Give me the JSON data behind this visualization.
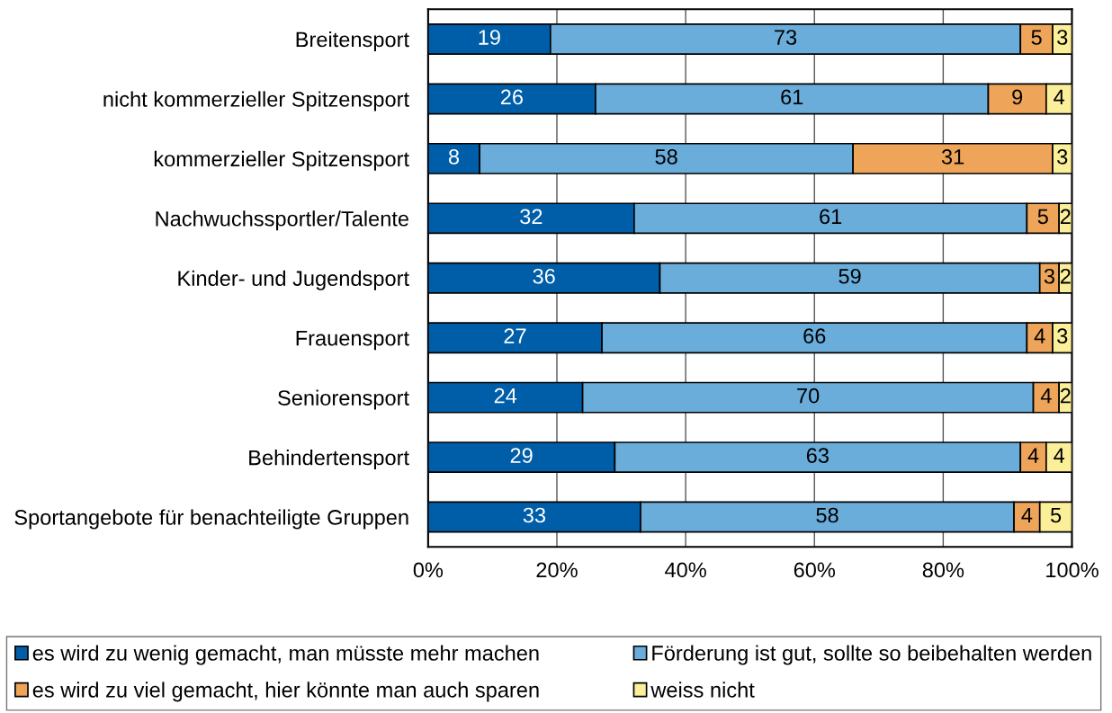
{
  "chart_data": {
    "type": "bar",
    "orientation": "horizontal",
    "stacked": true,
    "categories": [
      "Breitensport",
      "nicht kommerzieller Spitzensport",
      "kommerzieller Spitzensport",
      "Nachwuchssportler/Talente",
      "Kinder- und Jugendsport",
      "Frauensport",
      "Seniorensport",
      "Behindertensport",
      "Sportangebote für benachteiligte Gruppen"
    ],
    "series": [
      {
        "name": "es wird zu wenig gemacht, man müsste mehr machen",
        "color": "#005ea8",
        "values": [
          19,
          26,
          8,
          32,
          36,
          27,
          24,
          29,
          33
        ]
      },
      {
        "name": "Förderung ist gut, sollte so beibehalten werden",
        "color": "#6aaddb",
        "values": [
          73,
          61,
          58,
          61,
          59,
          66,
          70,
          63,
          58
        ]
      },
      {
        "name": "es wird zu viel gemacht, hier könnte man auch sparen",
        "color": "#eea55a",
        "values": [
          5,
          9,
          31,
          5,
          3,
          4,
          4,
          4,
          4
        ]
      },
      {
        "name": "weiss nicht",
        "color": "#fbef9a",
        "values": [
          3,
          4,
          3,
          2,
          2,
          3,
          2,
          4,
          5
        ]
      }
    ],
    "xlim": [
      0,
      100
    ],
    "xticks": [
      {
        "value": 0,
        "label": "0%"
      },
      {
        "value": 20,
        "label": "20%"
      },
      {
        "value": 40,
        "label": "40%"
      },
      {
        "value": 60,
        "label": "60%"
      },
      {
        "value": 80,
        "label": "80%"
      },
      {
        "value": 100,
        "label": "100%"
      }
    ],
    "grid": "x",
    "legend": "bottom",
    "data_labels": true
  }
}
